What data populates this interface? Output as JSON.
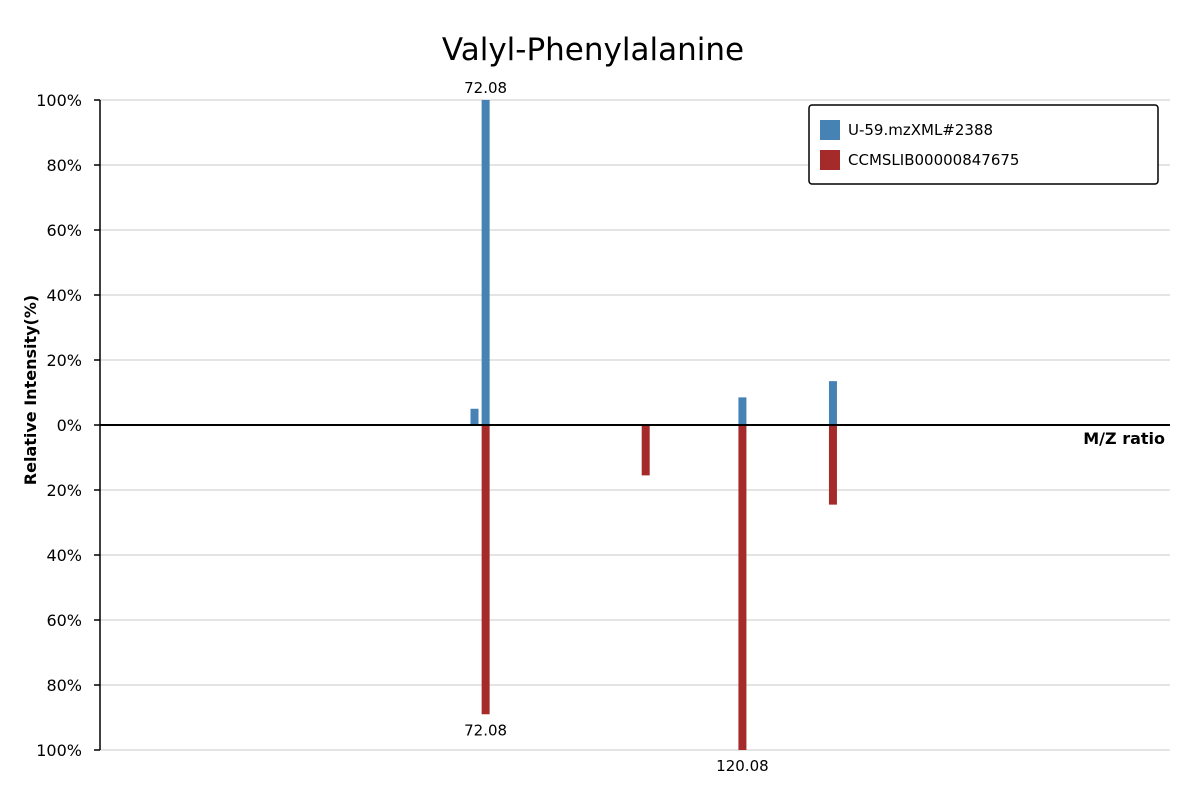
{
  "chart_data": {
    "type": "bar",
    "title": "Valyl-Phenylalanine",
    "xlabel": "M/Z ratio",
    "ylabel": "Relative Intensity(%)",
    "ylim_top": [
      0,
      100
    ],
    "ylim_bottom": [
      0,
      100
    ],
    "y_ticks_top": [
      "0%",
      "20%",
      "40%",
      "60%",
      "80%",
      "100%"
    ],
    "y_ticks_bottom": [
      "20%",
      "40%",
      "60%",
      "80%",
      "100%"
    ],
    "grid": true,
    "legend_position": "top-right",
    "x_range_approx": [
      0,
      200
    ],
    "series": [
      {
        "name": "U-59.mzXML#2388",
        "color": "#4682b4",
        "direction": "up",
        "peaks": [
          {
            "mz": 70.0,
            "intensity": 5
          },
          {
            "mz": 72.08,
            "intensity": 100,
            "label": "72.08"
          },
          {
            "mz": 120.08,
            "intensity": 8.5
          },
          {
            "mz": 137.0,
            "intensity": 13.5
          }
        ]
      },
      {
        "name": "CCMSLIB00000847675",
        "color": "#a52a2a",
        "direction": "down",
        "peaks": [
          {
            "mz": 72.08,
            "intensity": 89,
            "label": "72.08"
          },
          {
            "mz": 102.0,
            "intensity": 15.5
          },
          {
            "mz": 120.08,
            "intensity": 100,
            "label": "120.08"
          },
          {
            "mz": 137.0,
            "intensity": 24.5
          }
        ]
      }
    ]
  }
}
